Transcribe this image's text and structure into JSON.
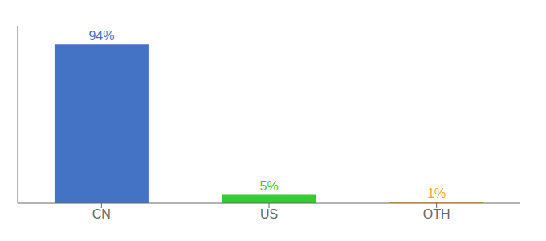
{
  "chart_data": {
    "type": "bar",
    "categories": [
      "CN",
      "US",
      "OTH"
    ],
    "values": [
      94,
      5,
      1
    ],
    "value_labels": [
      "94%",
      "5%",
      "1%"
    ],
    "colors": [
      "#4472C4",
      "#33CC33",
      "#F4A824"
    ],
    "ylim": [
      0,
      105
    ],
    "tick_labels": "x",
    "data_labels": true,
    "grid": false
  }
}
